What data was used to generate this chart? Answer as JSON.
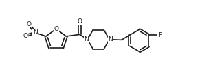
{
  "bg_color": "#ffffff",
  "line_color": "#1a1a1a",
  "line_width": 1.2,
  "figsize": [
    3.2,
    1.17
  ],
  "dpi": 100,
  "xlim": [
    0,
    10
  ],
  "ylim": [
    0,
    3.65
  ],
  "text_fs": 6.2
}
